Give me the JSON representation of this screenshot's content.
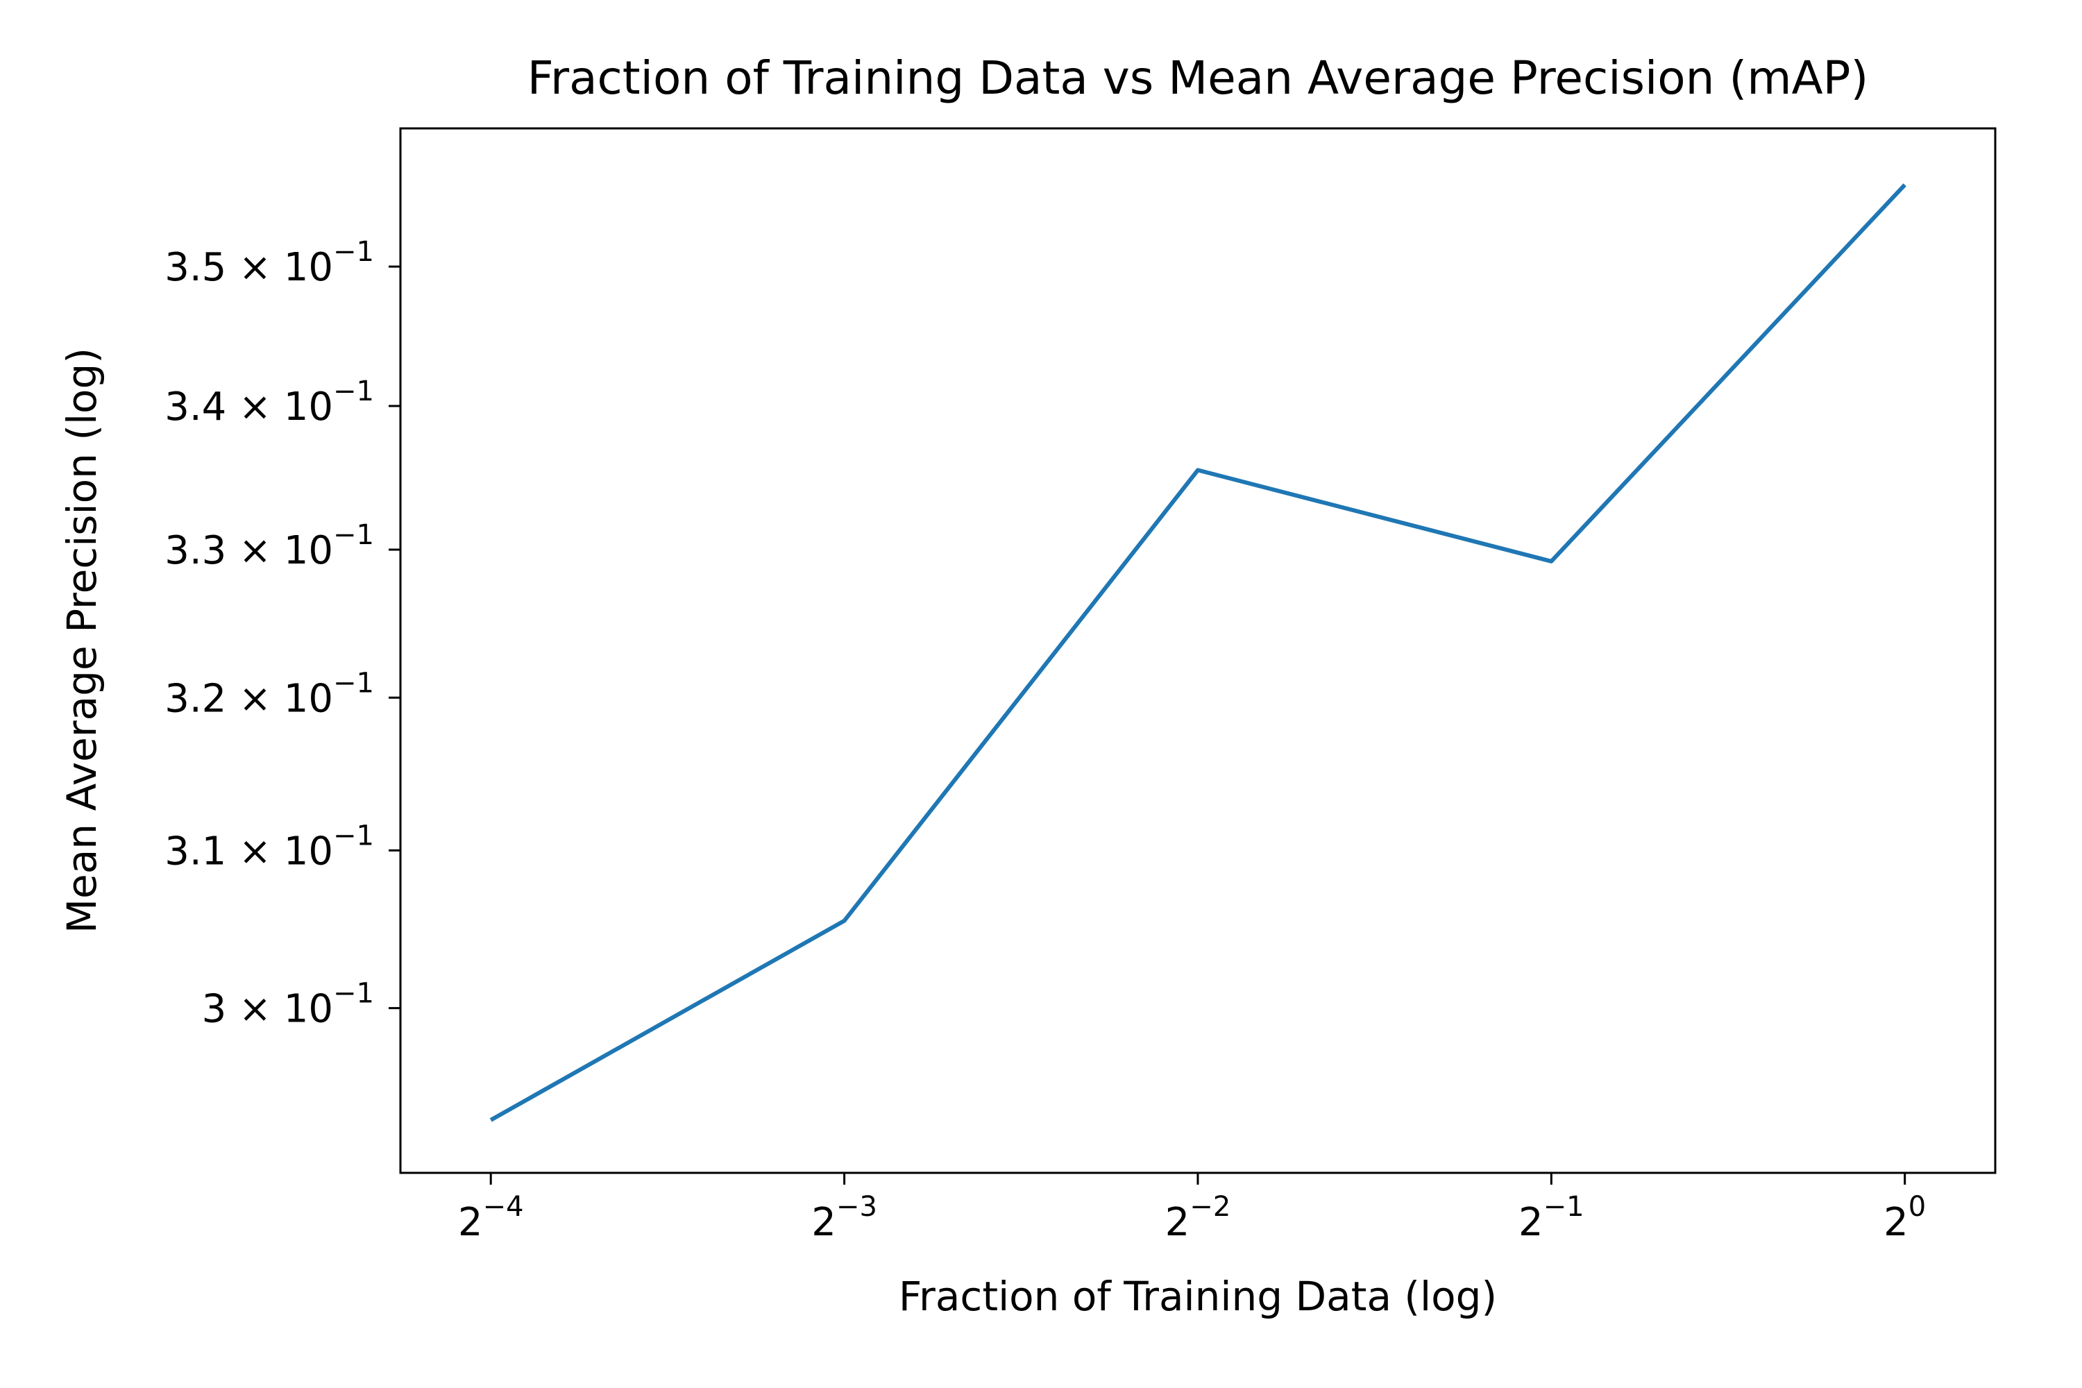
{
  "chart_data": {
    "type": "line",
    "title": "Fraction of Training Data vs Mean Average Precision (mAP)",
    "xlabel": "Fraction of Training Data (log)",
    "ylabel": "Mean Average Precision (log)",
    "x_scale": "log2",
    "y_scale": "log10",
    "grid": false,
    "xlim": [
      0.05235,
      1.194
    ],
    "ylim": [
      0.2899,
      0.3602
    ],
    "x_ticks": [
      {
        "value": 0.0625,
        "label": "2",
        "exp": "−4"
      },
      {
        "value": 0.125,
        "label": "2",
        "exp": "−3"
      },
      {
        "value": 0.25,
        "label": "2",
        "exp": "−2"
      },
      {
        "value": 0.5,
        "label": "2",
        "exp": "−1"
      },
      {
        "value": 1.0,
        "label": "2",
        "exp": "0"
      }
    ],
    "y_ticks": [
      {
        "value": 0.3,
        "label": "3 × 10",
        "exp": "−1"
      },
      {
        "value": 0.31,
        "label": "3.1 × 10",
        "exp": "−1"
      },
      {
        "value": 0.32,
        "label": "3.2 × 10",
        "exp": "−1"
      },
      {
        "value": 0.33,
        "label": "3.3 × 10",
        "exp": "−1"
      },
      {
        "value": 0.34,
        "label": "3.4 × 10",
        "exp": "−1"
      },
      {
        "value": 0.35,
        "label": "3.5 × 10",
        "exp": "−1"
      }
    ],
    "series": [
      {
        "color": "#1f77b4",
        "x": [
          0.0625,
          0.125,
          0.25,
          0.5,
          1.0
        ],
        "y": [
          0.2931,
          0.3055,
          0.3355,
          0.3292,
          0.356
        ]
      }
    ]
  }
}
